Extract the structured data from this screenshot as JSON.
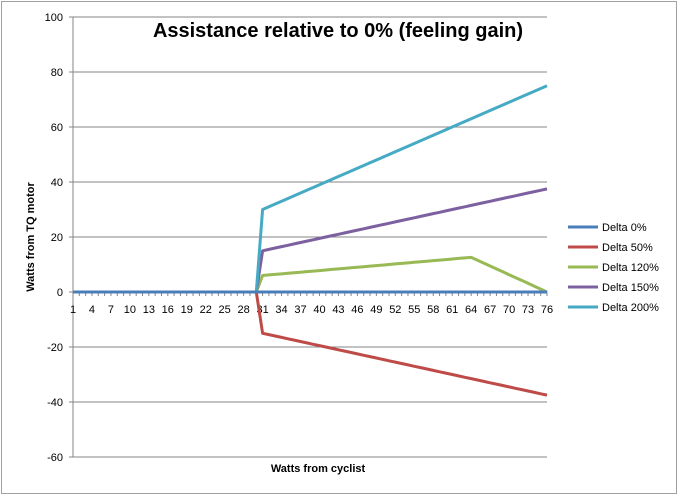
{
  "chart_data": {
    "type": "line",
    "title": "Assistance relative to 0% (feeling gain)",
    "xlabel": "Watts from cyclist",
    "ylabel": "Watts from TQ motor",
    "ylim": [
      -60,
      100
    ],
    "yticks": [
      -60,
      -40,
      -20,
      0,
      20,
      40,
      60,
      80,
      100
    ],
    "grid": true,
    "legend": "right",
    "x_start": 1,
    "x_end": 76,
    "x_tick_step": 3,
    "series": [
      {
        "name": "Delta 0%",
        "color": "#4a7ebb",
        "zero_until": 30,
        "values_from_31": [
          0,
          0,
          0,
          0,
          0,
          0,
          0,
          0,
          0,
          0,
          0,
          0,
          0,
          0,
          0,
          0,
          0,
          0,
          0,
          0,
          0,
          0,
          0,
          0,
          0,
          0,
          0,
          0,
          0,
          0,
          0,
          0,
          0,
          0,
          0,
          0,
          0,
          0,
          0,
          0,
          0,
          0,
          0,
          0,
          0,
          0
        ]
      },
      {
        "name": "Delta 50%",
        "color": "#be4b48",
        "zero_until": 30,
        "values_from_31": [
          -15,
          -15.5,
          -16,
          -16.5,
          -17,
          -17.5,
          -18,
          -18.5,
          -19,
          -19.5,
          -20,
          -20.5,
          -21,
          -21.5,
          -22,
          -22.5,
          -23,
          -23.5,
          -24,
          -24.5,
          -25,
          -25.5,
          -26,
          -26.5,
          -27,
          -27.5,
          -28,
          -28.5,
          -29,
          -29.5,
          -30,
          -30.5,
          -31,
          -31.5,
          -32,
          -32.5,
          -33,
          -33.5,
          -34,
          -34.5,
          -35,
          -35.5,
          -36,
          -36.5,
          -37,
          -37.5
        ]
      },
      {
        "name": "Delta 120%",
        "color": "#98b954",
        "zero_until": 30,
        "values_from_31": [
          6,
          6.2,
          6.4,
          6.6,
          6.8,
          7,
          7.2,
          7.4,
          7.6,
          7.8,
          8,
          8.2,
          8.4,
          8.6,
          8.8,
          9,
          9.2,
          9.4,
          9.6,
          9.8,
          10,
          10.2,
          10.4,
          10.6,
          10.8,
          11,
          11.2,
          11.4,
          11.6,
          11.8,
          12,
          12.2,
          12.4,
          12.6,
          11.55,
          10.5,
          9.45,
          8.4,
          7.35,
          6.3,
          5.25,
          4.2,
          3.15,
          2.1,
          1.05,
          0
        ]
      },
      {
        "name": "Delta 150%",
        "color": "#7d60a0",
        "zero_until": 30,
        "values_from_31": [
          15,
          15.5,
          16,
          16.5,
          17,
          17.5,
          18,
          18.5,
          19,
          19.5,
          20,
          20.5,
          21,
          21.5,
          22,
          22.5,
          23,
          23.5,
          24,
          24.5,
          25,
          25.5,
          26,
          26.5,
          27,
          27.5,
          28,
          28.5,
          29,
          29.5,
          30,
          30.5,
          31,
          31.5,
          32,
          32.5,
          33,
          33.5,
          34,
          34.5,
          35,
          35.5,
          36,
          36.5,
          37,
          37.5
        ]
      },
      {
        "name": "Delta 200%",
        "color": "#46aac5",
        "zero_until": 30,
        "values_from_31": [
          30,
          31,
          32,
          33,
          34,
          35,
          36,
          37,
          38,
          39,
          40,
          41,
          42,
          43,
          44,
          45,
          46,
          47,
          48,
          49,
          50,
          51,
          52,
          53,
          54,
          55,
          56,
          57,
          58,
          59,
          60,
          61,
          62,
          63,
          64,
          65,
          66,
          67,
          68,
          69,
          70,
          71,
          72,
          73,
          74,
          75
        ]
      }
    ]
  }
}
